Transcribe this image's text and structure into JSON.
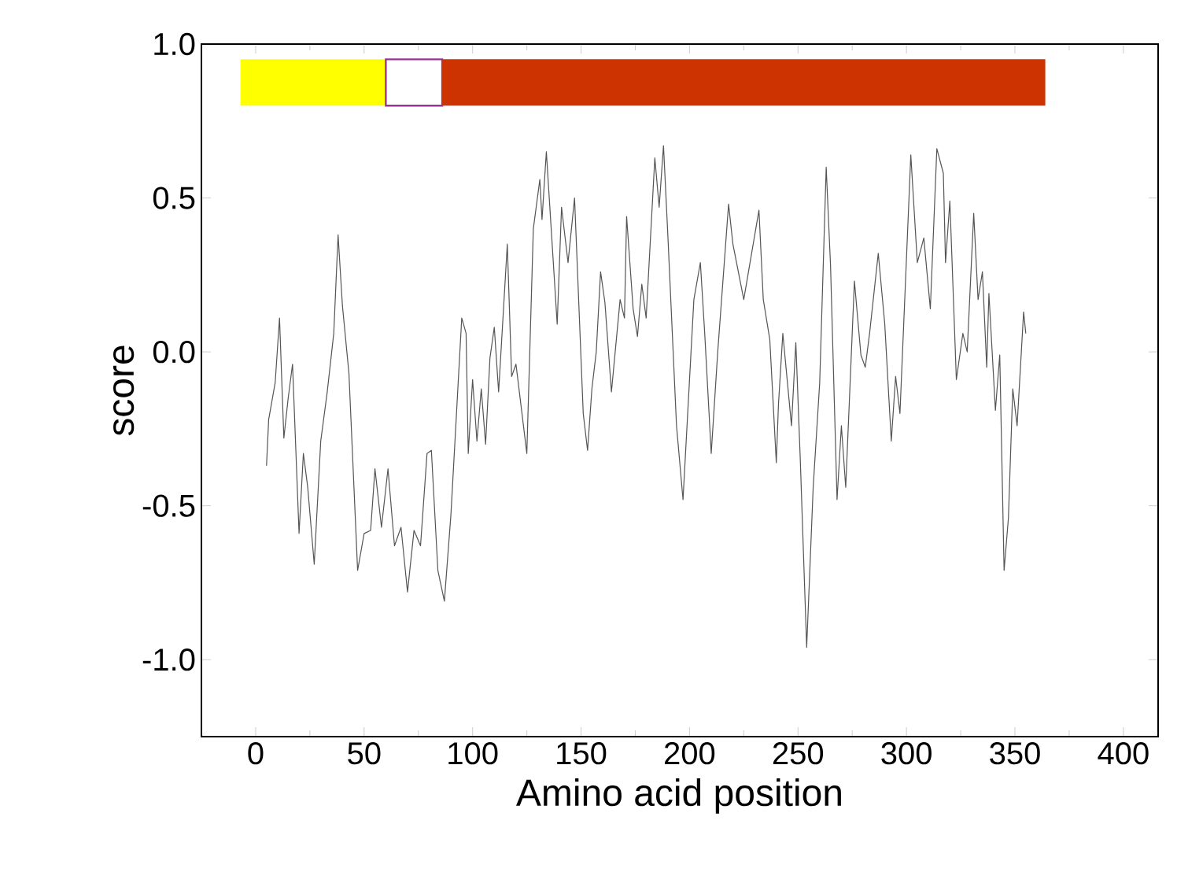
{
  "chart_data": {
    "type": "line",
    "xlabel": "Amino acid position",
    "ylabel": "score",
    "xlim": [
      -25,
      416
    ],
    "ylim": [
      -1.25,
      1.0
    ],
    "xticks": [
      0,
      50,
      100,
      150,
      200,
      250,
      300,
      350,
      400
    ],
    "yticks": [
      {
        "value": -1.0,
        "label": "-1.0"
      },
      {
        "value": -0.5,
        "label": "-0.5"
      },
      {
        "value": 0.0,
        "label": "0.0"
      },
      {
        "value": 0.5,
        "label": "0.5"
      },
      {
        "value": 1.0,
        "label": "1.0"
      }
    ],
    "grid": false,
    "marker": "none",
    "line_style": "solid",
    "bands": [
      {
        "axis": "x",
        "from": -7,
        "to": 60,
        "color": "#ffff00"
      },
      {
        "axis": "x",
        "from": 60,
        "to": 86,
        "color": "#ffffff"
      },
      {
        "axis": "x",
        "from": 86,
        "to": 364,
        "color": "#cc3300"
      }
    ],
    "series": [
      {
        "color": "#555555",
        "x": [
          5,
          6,
          9,
          11,
          13,
          15,
          17,
          20,
          22,
          24,
          27,
          30,
          33,
          36,
          38,
          40,
          43,
          47,
          50,
          53,
          55,
          58,
          61,
          64,
          67,
          70,
          73,
          76,
          79,
          81,
          84,
          87,
          90,
          95,
          97,
          98,
          100,
          102,
          104,
          106,
          108,
          110,
          112,
          116,
          118,
          120,
          125,
          128,
          131,
          132,
          134,
          139,
          141,
          144,
          147,
          151,
          153,
          155,
          157,
          159,
          161,
          164,
          168,
          170,
          171,
          174,
          176,
          178,
          180,
          184,
          186,
          188,
          190,
          194,
          197,
          202,
          205,
          207,
          210,
          213,
          218,
          220,
          225,
          232,
          234,
          237,
          240,
          241,
          243,
          247,
          249,
          251,
          254,
          257,
          260,
          263,
          265,
          268,
          270,
          272,
          276,
          279,
          281,
          283,
          287,
          290,
          293,
          295,
          297,
          302,
          305,
          308,
          311,
          314,
          317,
          318,
          320,
          323,
          326,
          328,
          331,
          333,
          335,
          337,
          338,
          341,
          343,
          345,
          347,
          349,
          351,
          354,
          355
        ],
        "values": [
          -0.37,
          -0.22,
          -0.1,
          0.11,
          -0.28,
          -0.15,
          -0.04,
          -0.59,
          -0.33,
          -0.44,
          -0.69,
          -0.29,
          -0.13,
          0.06,
          0.38,
          0.15,
          -0.07,
          -0.71,
          -0.59,
          -0.58,
          -0.38,
          -0.57,
          -0.38,
          -0.63,
          -0.57,
          -0.78,
          -0.58,
          -0.63,
          -0.33,
          -0.32,
          -0.71,
          -0.81,
          -0.53,
          0.11,
          0.06,
          -0.33,
          -0.09,
          -0.29,
          -0.12,
          -0.3,
          -0.02,
          0.08,
          -0.13,
          0.35,
          -0.08,
          -0.04,
          -0.33,
          0.4,
          0.56,
          0.43,
          0.65,
          0.09,
          0.47,
          0.29,
          0.5,
          -0.2,
          -0.32,
          -0.12,
          0.0,
          0.26,
          0.16,
          -0.13,
          0.17,
          0.11,
          0.44,
          0.14,
          0.05,
          0.22,
          0.11,
          0.63,
          0.47,
          0.67,
          0.38,
          -0.24,
          -0.48,
          0.17,
          0.29,
          0.06,
          -0.33,
          0.0,
          0.48,
          0.35,
          0.17,
          0.46,
          0.17,
          0.04,
          -0.36,
          -0.17,
          0.06,
          -0.24,
          0.03,
          -0.34,
          -0.96,
          -0.44,
          -0.1,
          0.6,
          0.28,
          -0.48,
          -0.24,
          -0.44,
          0.23,
          -0.01,
          -0.05,
          0.06,
          0.32,
          0.09,
          -0.29,
          -0.08,
          -0.2,
          0.64,
          0.29,
          0.37,
          0.14,
          0.66,
          0.58,
          0.29,
          0.49,
          -0.09,
          0.06,
          0.0,
          0.45,
          0.17,
          0.26,
          -0.05,
          0.19,
          -0.19,
          -0.01,
          -0.71,
          -0.54,
          -0.12,
          -0.24,
          0.13,
          0.06
        ]
      }
    ]
  }
}
